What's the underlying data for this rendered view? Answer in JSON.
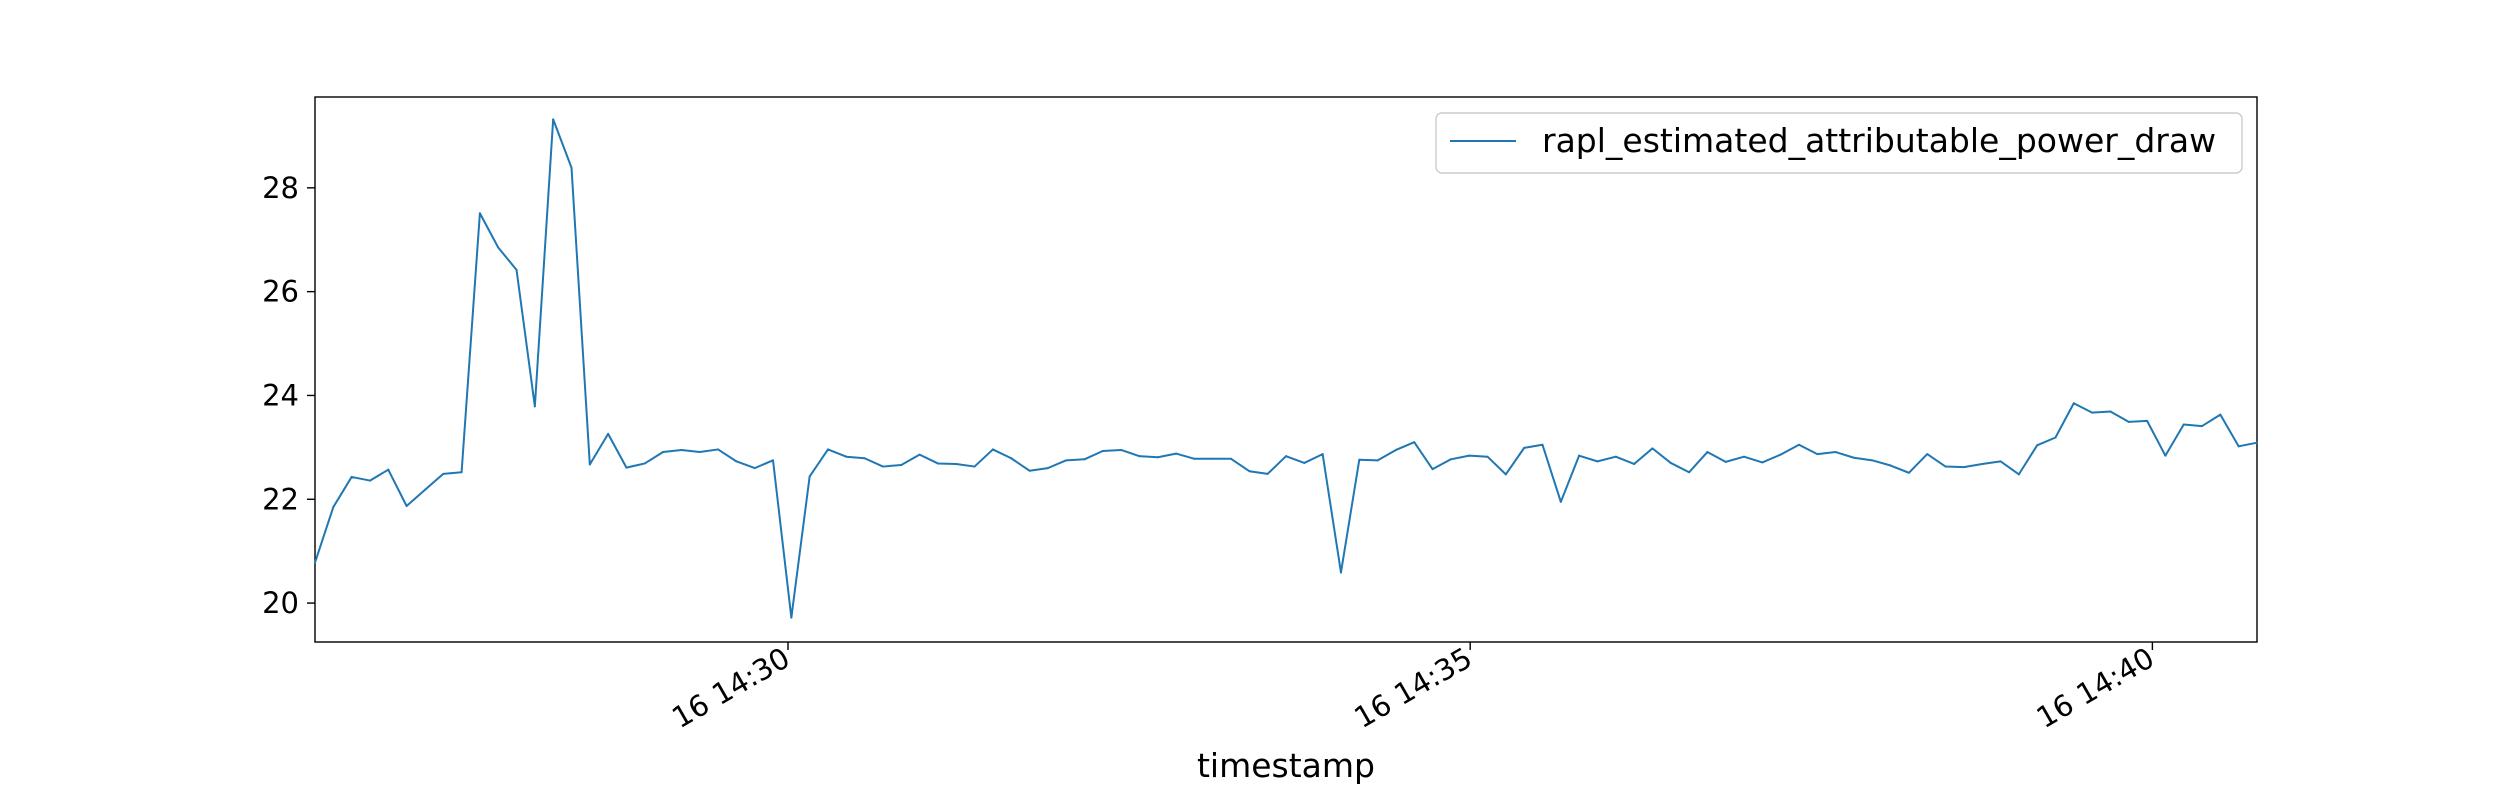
{
  "chart_data": {
    "type": "line",
    "title": "",
    "xlabel": "timestamp",
    "ylabel": "",
    "x_start": "16 14:26:32",
    "x_end": "16 14:40:46",
    "xlim": [
      "16 14:26:32",
      "16 14:40:46"
    ],
    "ylim": [
      19.25,
      29.75
    ],
    "x_ticks": [
      {
        "label": "16 14:30",
        "value": "16 14:30:00"
      },
      {
        "label": "16 14:35",
        "value": "16 14:35:00"
      },
      {
        "label": "16 14:40",
        "value": "16 14:40:00"
      }
    ],
    "y_ticks": [
      20,
      22,
      24,
      26,
      28
    ],
    "grid": false,
    "legend": {
      "position": "top-right",
      "entries": [
        "rapl_estimated_attributable_power_draw"
      ]
    },
    "series": [
      {
        "name": "rapl_estimated_attributable_power_draw",
        "color": "#1f77b4",
        "values": [
          20.78,
          21.85,
          22.43,
          22.36,
          22.57,
          21.87,
          22.18,
          22.49,
          22.52,
          27.51,
          26.85,
          26.42,
          23.79,
          29.32,
          28.39,
          22.67,
          23.26,
          22.61,
          22.69,
          22.91,
          22.95,
          22.91,
          22.96,
          22.73,
          22.6,
          22.75,
          19.72,
          22.44,
          22.96,
          22.82,
          22.79,
          22.63,
          22.66,
          22.86,
          22.69,
          22.68,
          22.63,
          22.96,
          22.79,
          22.55,
          22.6,
          22.75,
          22.77,
          22.93,
          22.95,
          22.83,
          22.81,
          22.88,
          22.78,
          22.78,
          22.78,
          22.54,
          22.49,
          22.83,
          22.7,
          22.87,
          20.59,
          22.76,
          22.75,
          22.95,
          23.1,
          22.58,
          22.77,
          22.84,
          22.82,
          22.48,
          22.99,
          23.05,
          21.95,
          22.84,
          22.73,
          22.82,
          22.68,
          22.98,
          22.7,
          22.52,
          22.91,
          22.72,
          22.82,
          22.71,
          22.86,
          23.05,
          22.87,
          22.91,
          22.8,
          22.75,
          22.65,
          22.51,
          22.87,
          22.63,
          22.62,
          22.68,
          22.73,
          22.48,
          23.04,
          23.19,
          23.85,
          23.67,
          23.69,
          23.49,
          23.51,
          22.84,
          23.44,
          23.41,
          23.63,
          23.02,
          23.09
        ]
      }
    ]
  }
}
